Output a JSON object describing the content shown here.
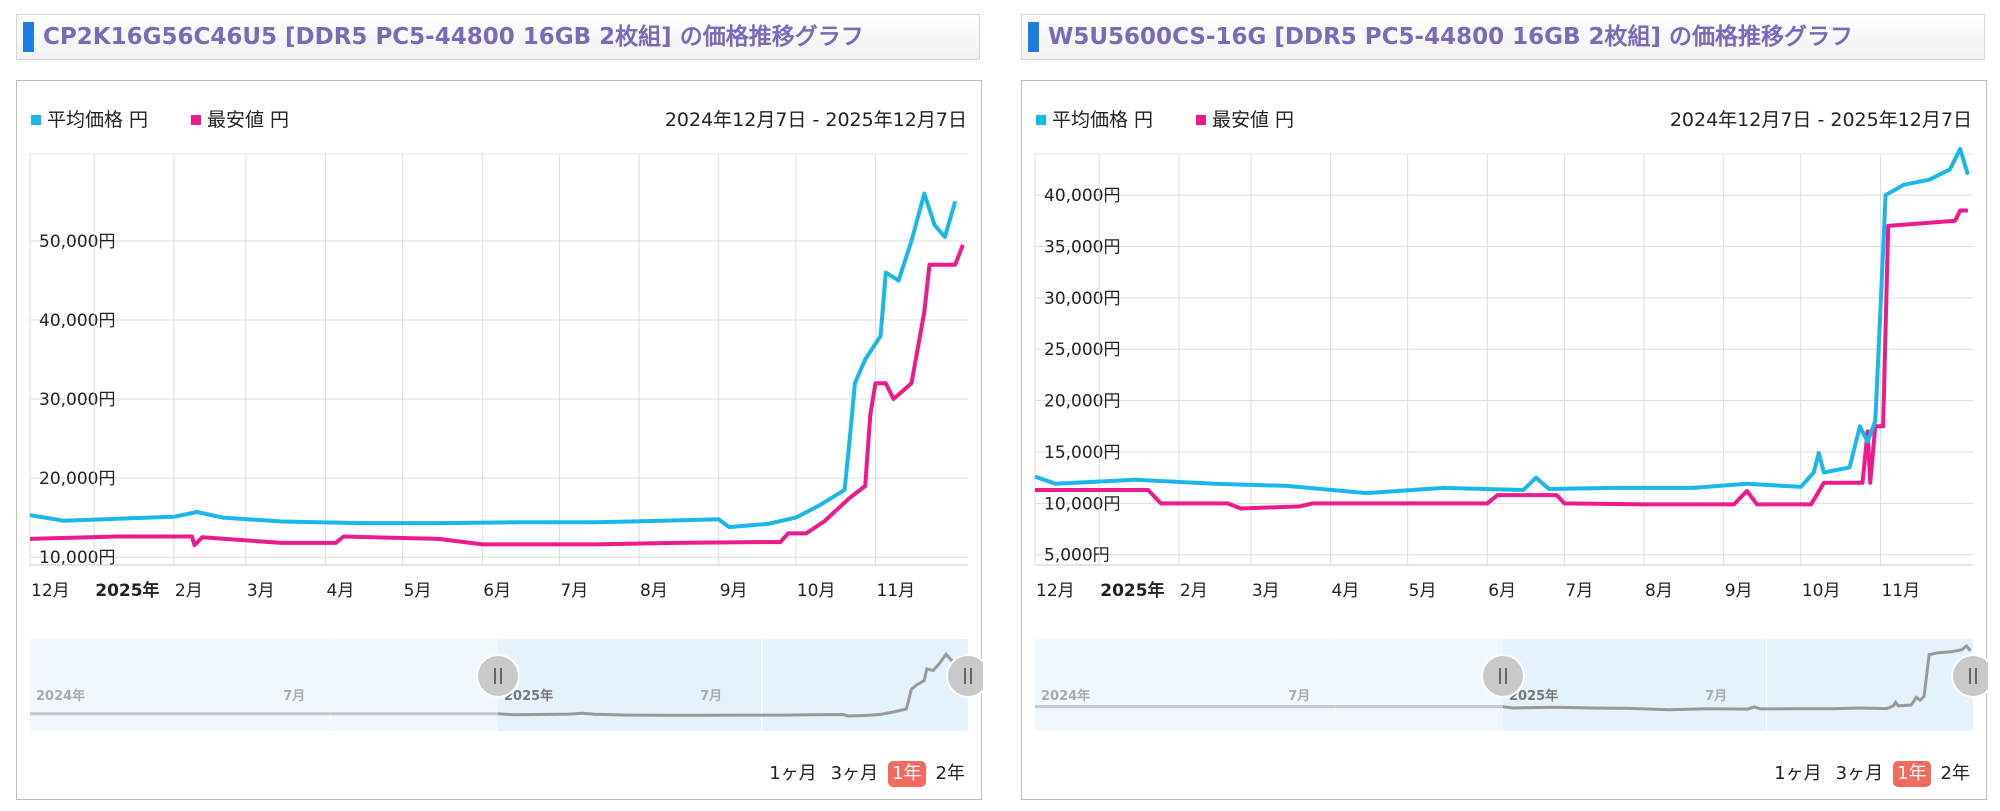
{
  "colors": {
    "avg": "#1ab8e8",
    "min": "#ec1a8c",
    "title": "#7a6ab8",
    "nav_bg": "#e4f3fb",
    "nav_line": "#999999"
  },
  "legend": {
    "avg": "平均価格 円",
    "min": "最安値 円"
  },
  "range_buttons": [
    "1ヶ月",
    "3ヶ月",
    "1年",
    "2年"
  ],
  "active_range": "1年",
  "panels": [
    {
      "title": "CP2K16G56C46U5 [DDR5 PC5-44800 16GB 2枚組] の価格推移グラフ",
      "date_range": "2024年12月7日 - 2025年12月7日",
      "nav_labels": [
        "2024年",
        "7月",
        "2025年",
        "7月"
      ],
      "chart_data": {
        "type": "line",
        "x_range": [
          "2024-12-07",
          "2025-12-07"
        ],
        "ylim": [
          9000,
          61000
        ],
        "y_ticks": [
          10000,
          20000,
          30000,
          40000,
          50000
        ],
        "y_tick_labels": [
          "10,000円",
          "20,000円",
          "30,000円",
          "40,000円",
          "50,000円"
        ],
        "x_ticks": [
          "2024-12-01",
          "2025-01-01",
          "2025-02-01",
          "2025-03-01",
          "2025-04-01",
          "2025-05-01",
          "2025-06-01",
          "2025-07-01",
          "2025-08-01",
          "2025-09-01",
          "2025-10-01",
          "2025-11-01"
        ],
        "x_tick_labels": [
          "12月",
          "2025年",
          "2月",
          "3月",
          "4月",
          "5月",
          "6月",
          "7月",
          "8月",
          "9月",
          "10月",
          "11月"
        ],
        "series": [
          {
            "name": "平均価格 円",
            "key": "avg",
            "points": [
              [
                "2024-12-07",
                15300
              ],
              [
                "2024-12-20",
                14600
              ],
              [
                "2025-01-05",
                14800
              ],
              [
                "2025-02-01",
                15100
              ],
              [
                "2025-02-10",
                15700
              ],
              [
                "2025-02-20",
                15000
              ],
              [
                "2025-03-15",
                14500
              ],
              [
                "2025-04-15",
                14300
              ],
              [
                "2025-05-15",
                14300
              ],
              [
                "2025-06-15",
                14400
              ],
              [
                "2025-07-15",
                14400
              ],
              [
                "2025-08-10",
                14600
              ],
              [
                "2025-09-01",
                14800
              ],
              [
                "2025-09-05",
                13800
              ],
              [
                "2025-09-20",
                14200
              ],
              [
                "2025-10-01",
                15000
              ],
              [
                "2025-10-10",
                16500
              ],
              [
                "2025-10-20",
                18500
              ],
              [
                "2025-10-22",
                25000
              ],
              [
                "2025-10-24",
                32000
              ],
              [
                "2025-10-28",
                35000
              ],
              [
                "2025-11-01",
                37000
              ],
              [
                "2025-11-03",
                38000
              ],
              [
                "2025-11-05",
                46000
              ],
              [
                "2025-11-10",
                45000
              ],
              [
                "2025-11-15",
                50000
              ],
              [
                "2025-11-20",
                56000
              ],
              [
                "2025-11-24",
                52000
              ],
              [
                "2025-11-28",
                50500
              ],
              [
                "2025-12-02",
                55000
              ]
            ]
          },
          {
            "name": "最安値 円",
            "key": "min",
            "points": [
              [
                "2024-12-07",
                12300
              ],
              [
                "2025-01-10",
                12600
              ],
              [
                "2025-02-08",
                12600
              ],
              [
                "2025-02-09",
                11500
              ],
              [
                "2025-02-12",
                12500
              ],
              [
                "2025-03-15",
                11800
              ],
              [
                "2025-04-05",
                11800
              ],
              [
                "2025-04-08",
                12600
              ],
              [
                "2025-05-15",
                12300
              ],
              [
                "2025-06-01",
                11600
              ],
              [
                "2025-07-15",
                11600
              ],
              [
                "2025-08-15",
                11800
              ],
              [
                "2025-09-15",
                11900
              ],
              [
                "2025-09-25",
                11900
              ],
              [
                "2025-09-28",
                13000
              ],
              [
                "2025-10-05",
                13000
              ],
              [
                "2025-10-12",
                14500
              ],
              [
                "2025-10-22",
                17500
              ],
              [
                "2025-10-28",
                19000
              ],
              [
                "2025-10-30",
                28000
              ],
              [
                "2025-11-01",
                32000
              ],
              [
                "2025-11-05",
                32000
              ],
              [
                "2025-11-08",
                30000
              ],
              [
                "2025-11-15",
                32000
              ],
              [
                "2025-11-20",
                41000
              ],
              [
                "2025-11-22",
                47000
              ],
              [
                "2025-12-02",
                47000
              ],
              [
                "2025-12-05",
                49500
              ]
            ]
          }
        ]
      }
    },
    {
      "title": "W5U5600CS-16G [DDR5 PC5-44800 16GB 2枚組] の価格推移グラフ",
      "date_range": "2024年12月7日 - 2025年12月7日",
      "nav_labels": [
        "2024年",
        "7月",
        "2025年",
        "7月"
      ],
      "chart_data": {
        "type": "line",
        "x_range": [
          "2024-12-07",
          "2025-12-07"
        ],
        "ylim": [
          4000,
          44000
        ],
        "y_ticks": [
          5000,
          10000,
          15000,
          20000,
          25000,
          30000,
          35000,
          40000
        ],
        "y_tick_labels": [
          "5,000円",
          "10,000円",
          "15,000円",
          "20,000円",
          "25,000円",
          "30,000円",
          "35,000円",
          "40,000円"
        ],
        "x_ticks": [
          "2024-12-01",
          "2025-01-01",
          "2025-02-01",
          "2025-03-01",
          "2025-04-01",
          "2025-05-01",
          "2025-06-01",
          "2025-07-01",
          "2025-08-01",
          "2025-09-01",
          "2025-10-01",
          "2025-11-01"
        ],
        "x_tick_labels": [
          "12月",
          "2025年",
          "2月",
          "3月",
          "4月",
          "5月",
          "6月",
          "7月",
          "8月",
          "9月",
          "10月",
          "11月"
        ],
        "series": [
          {
            "name": "平均価格 円",
            "key": "avg",
            "points": [
              [
                "2024-12-07",
                12600
              ],
              [
                "2024-12-15",
                11900
              ],
              [
                "2025-01-15",
                12300
              ],
              [
                "2025-02-15",
                11900
              ],
              [
                "2025-03-15",
                11700
              ],
              [
                "2025-04-15",
                11000
              ],
              [
                "2025-05-15",
                11500
              ],
              [
                "2025-06-15",
                11300
              ],
              [
                "2025-06-20",
                12500
              ],
              [
                "2025-06-25",
                11400
              ],
              [
                "2025-07-20",
                11500
              ],
              [
                "2025-08-20",
                11500
              ],
              [
                "2025-09-10",
                11900
              ],
              [
                "2025-10-01",
                11600
              ],
              [
                "2025-10-06",
                13000
              ],
              [
                "2025-10-08",
                14900
              ],
              [
                "2025-10-10",
                13000
              ],
              [
                "2025-10-20",
                13500
              ],
              [
                "2025-10-24",
                17500
              ],
              [
                "2025-10-27",
                16000
              ],
              [
                "2025-10-30",
                18000
              ],
              [
                "2025-11-01",
                29000
              ],
              [
                "2025-11-03",
                40000
              ],
              [
                "2025-11-10",
                41000
              ],
              [
                "2025-11-20",
                41500
              ],
              [
                "2025-11-28",
                42500
              ],
              [
                "2025-12-02",
                44500
              ],
              [
                "2025-12-05",
                42000
              ]
            ]
          },
          {
            "name": "最安値 円",
            "key": "min",
            "points": [
              [
                "2024-12-07",
                11300
              ],
              [
                "2025-01-20",
                11300
              ],
              [
                "2025-01-25",
                10000
              ],
              [
                "2025-02-20",
                10000
              ],
              [
                "2025-02-25",
                9500
              ],
              [
                "2025-03-20",
                9700
              ],
              [
                "2025-03-25",
                10000
              ],
              [
                "2025-06-01",
                10000
              ],
              [
                "2025-06-05",
                10800
              ],
              [
                "2025-06-28",
                10800
              ],
              [
                "2025-07-01",
                10000
              ],
              [
                "2025-08-01",
                9900
              ],
              [
                "2025-09-05",
                9900
              ],
              [
                "2025-09-10",
                11200
              ],
              [
                "2025-09-14",
                9900
              ],
              [
                "2025-10-05",
                9900
              ],
              [
                "2025-10-10",
                12000
              ],
              [
                "2025-10-25",
                12000
              ],
              [
                "2025-10-27",
                17000
              ],
              [
                "2025-10-28",
                12000
              ],
              [
                "2025-10-30",
                17500
              ],
              [
                "2025-11-02",
                17500
              ],
              [
                "2025-11-04",
                37000
              ],
              [
                "2025-11-30",
                37500
              ],
              [
                "2025-12-02",
                38500
              ],
              [
                "2025-12-05",
                38500
              ]
            ]
          }
        ]
      }
    }
  ]
}
